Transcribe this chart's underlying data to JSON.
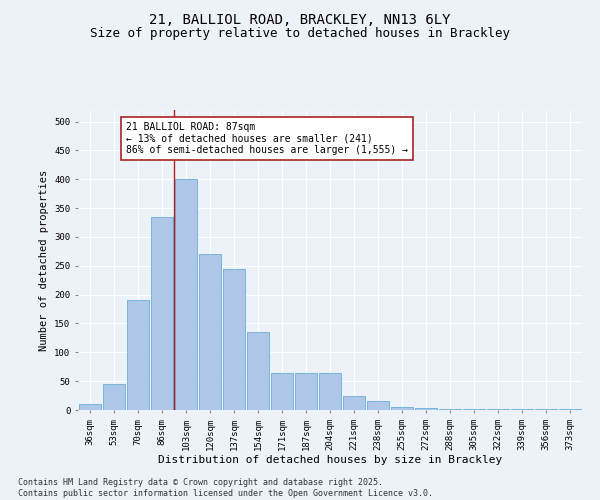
{
  "title1": "21, BALLIOL ROAD, BRACKLEY, NN13 6LY",
  "title2": "Size of property relative to detached houses in Brackley",
  "xlabel": "Distribution of detached houses by size in Brackley",
  "ylabel": "Number of detached properties",
  "categories": [
    "36sqm",
    "53sqm",
    "70sqm",
    "86sqm",
    "103sqm",
    "120sqm",
    "137sqm",
    "154sqm",
    "171sqm",
    "187sqm",
    "204sqm",
    "221sqm",
    "238sqm",
    "255sqm",
    "272sqm",
    "288sqm",
    "305sqm",
    "322sqm",
    "339sqm",
    "356sqm",
    "373sqm"
  ],
  "values": [
    10,
    45,
    190,
    335,
    400,
    270,
    245,
    135,
    65,
    65,
    65,
    25,
    15,
    5,
    3,
    2,
    1,
    1,
    1,
    1,
    2
  ],
  "bar_color": "#aec6e8",
  "bar_edge_color": "#6aaed6",
  "vline_x_index": 3.5,
  "vline_color": "#aa2222",
  "annotation_text": "21 BALLIOL ROAD: 87sqm\n← 13% of detached houses are smaller (241)\n86% of semi-detached houses are larger (1,555) →",
  "annotation_box_color": "#ffffff",
  "annotation_edge_color": "#aa2222",
  "ylim": [
    0,
    520
  ],
  "yticks": [
    0,
    50,
    100,
    150,
    200,
    250,
    300,
    350,
    400,
    450,
    500
  ],
  "background_color": "#edf2f9",
  "grid_color": "#ffffff",
  "footer_text": "Contains HM Land Registry data © Crown copyright and database right 2025.\nContains public sector information licensed under the Open Government Licence v3.0.",
  "title1_fontsize": 10,
  "title2_fontsize": 9,
  "xlabel_fontsize": 8,
  "ylabel_fontsize": 7.5,
  "tick_fontsize": 6.5,
  "annotation_fontsize": 7,
  "footer_fontsize": 6
}
